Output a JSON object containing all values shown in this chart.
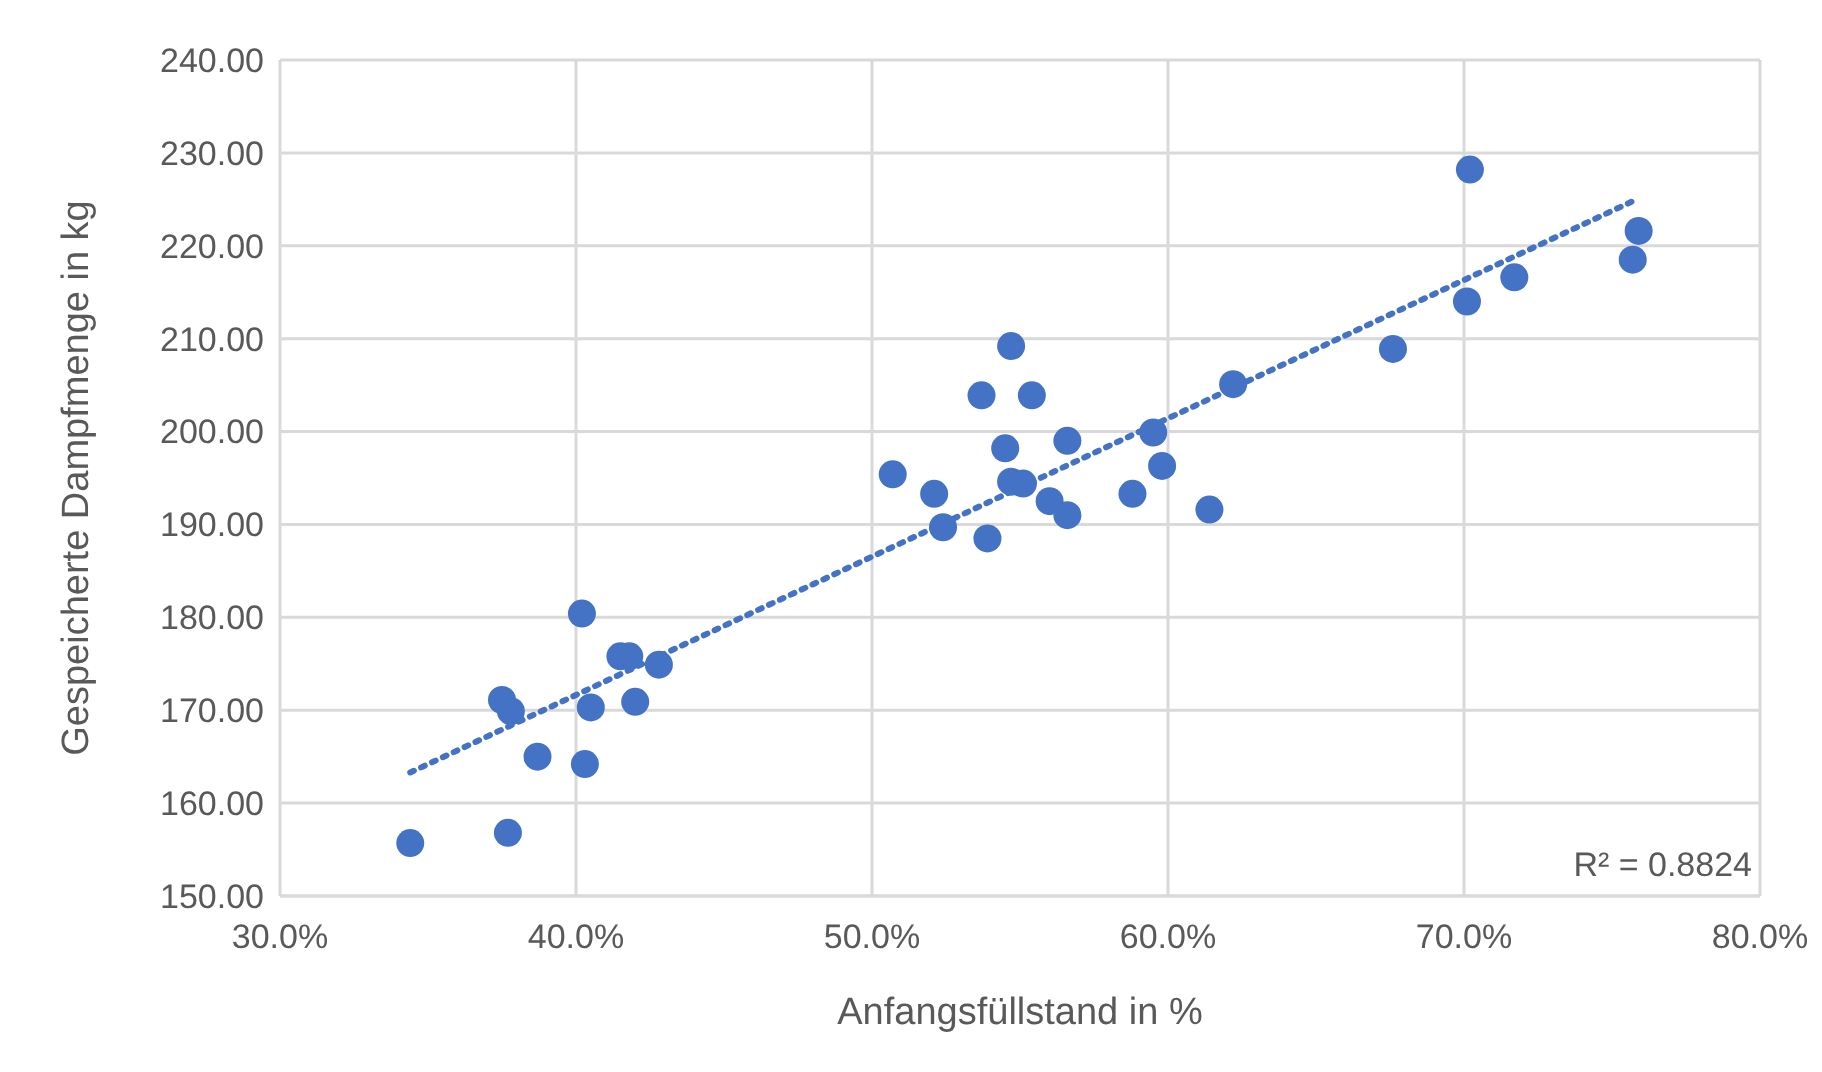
{
  "chart_data": {
    "type": "scatter",
    "xlabel": "Anfangsfüllstand in %",
    "ylabel": "Gespeicherte Dampfmenge in kg",
    "xlim": [
      30,
      80
    ],
    "xticks": [
      {
        "value": 30,
        "label": "30.0%"
      },
      {
        "value": 40,
        "label": "40.0%"
      },
      {
        "value": 50,
        "label": "50.0%"
      },
      {
        "value": 60,
        "label": "60.0%"
      },
      {
        "value": 70,
        "label": "70.0%"
      },
      {
        "value": 80,
        "label": "80.0%"
      }
    ],
    "ylim": [
      150,
      240
    ],
    "yticks": [
      {
        "value": 150,
        "label": "150.00"
      },
      {
        "value": 160,
        "label": "160.00"
      },
      {
        "value": 170,
        "label": "170.00"
      },
      {
        "value": 180,
        "label": "180.00"
      },
      {
        "value": 190,
        "label": "190.00"
      },
      {
        "value": 200,
        "label": "200.00"
      },
      {
        "value": 210,
        "label": "210.00"
      },
      {
        "value": 220,
        "label": "220.00"
      },
      {
        "value": 230,
        "label": "230.00"
      },
      {
        "value": 240,
        "label": "240.00"
      }
    ],
    "grid": true,
    "series": [
      {
        "color": "#4472c4",
        "marker": "circle",
        "x": [
          34.4,
          37.7,
          37.5,
          37.8,
          38.7,
          40.2,
          40.3,
          40.5,
          41.5,
          41.8,
          42.0,
          42.8,
          50.7,
          52.1,
          52.4,
          53.7,
          53.9,
          54.5,
          54.7,
          54.7,
          55.1,
          55.4,
          56.0,
          56.6,
          56.6,
          58.8,
          59.5,
          59.8,
          61.4,
          62.2,
          67.6,
          70.2,
          70.1,
          71.7,
          75.7,
          75.9
        ],
        "values": [
          155.7,
          156.8,
          171.1,
          169.9,
          165.0,
          180.4,
          164.2,
          170.3,
          175.8,
          175.8,
          170.9,
          174.9,
          195.4,
          193.3,
          189.7,
          203.9,
          188.5,
          198.2,
          209.2,
          194.6,
          194.4,
          203.9,
          192.5,
          199.0,
          191.0,
          193.3,
          199.9,
          196.3,
          191.6,
          205.1,
          208.9,
          228.2,
          214.0,
          216.6,
          218.5,
          221.6
        ]
      },
      {
        "type": "line",
        "color": "#4472c4",
        "line_style": "dotted",
        "marker": "none",
        "x": [
          34.4,
          75.7
        ],
        "values": [
          163.3,
          224.8
        ]
      }
    ],
    "annotations": [
      "R² = 0.8824"
    ]
  }
}
